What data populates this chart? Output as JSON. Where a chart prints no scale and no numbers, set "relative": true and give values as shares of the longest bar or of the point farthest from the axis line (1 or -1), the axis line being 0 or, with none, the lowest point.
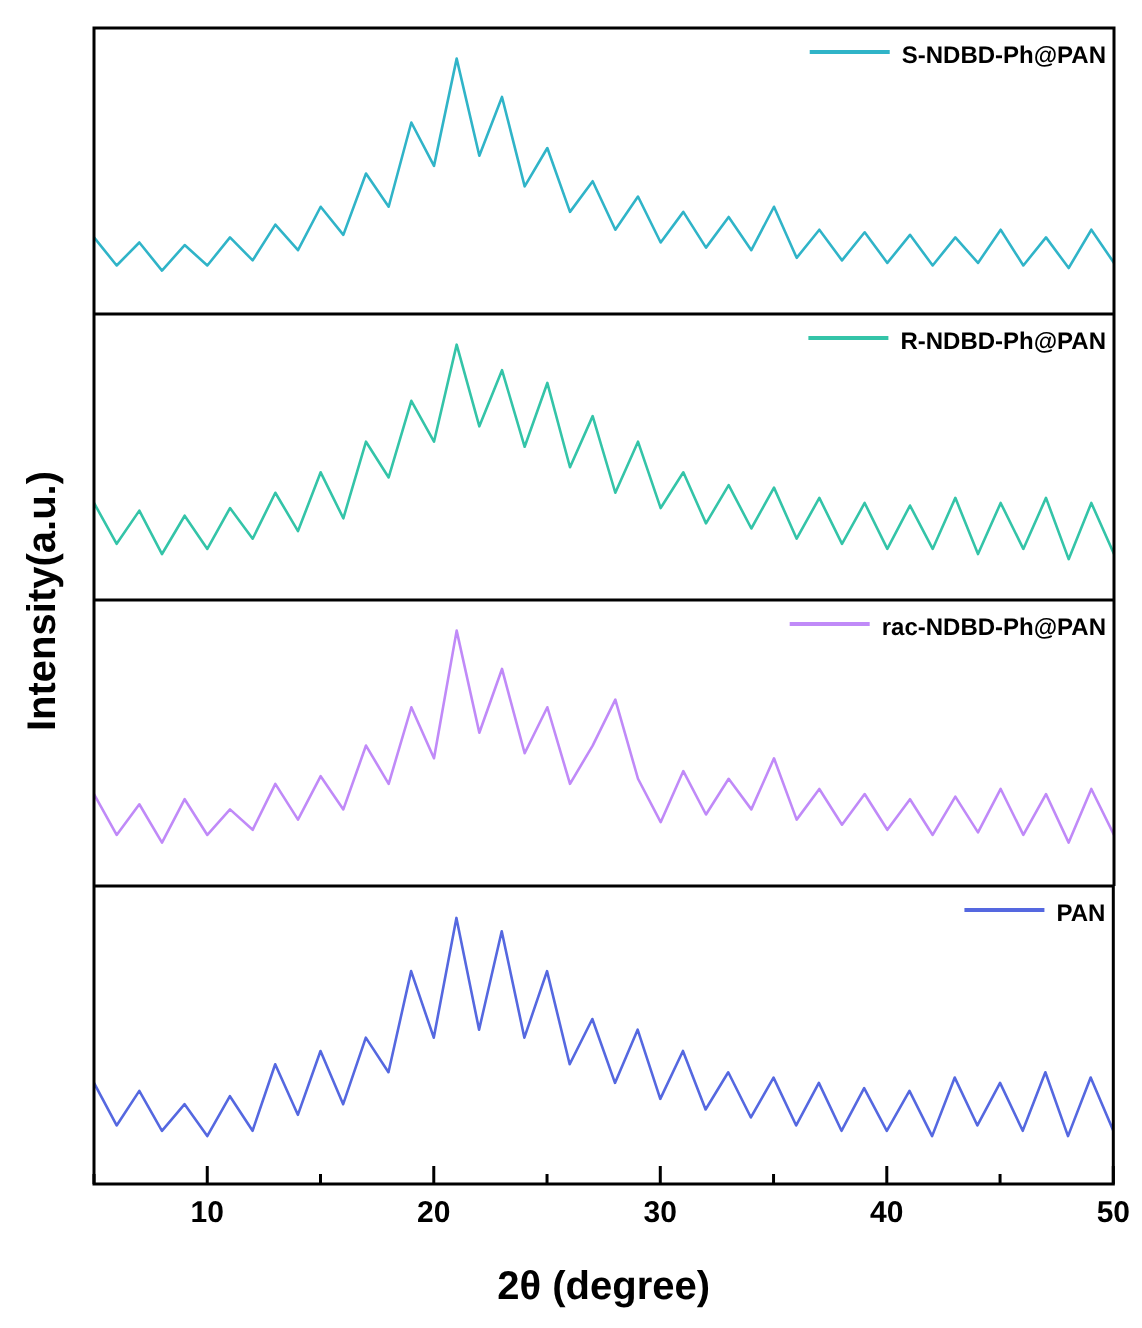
{
  "chart_data": [
    {
      "type": "line",
      "relative": true,
      "xlim": [
        5,
        50
      ],
      "tick_labels": false,
      "legend": "top right",
      "x": [
        5,
        6,
        7,
        8,
        9,
        10,
        11,
        12,
        13,
        14,
        15,
        16,
        17,
        18,
        19,
        20,
        21,
        22,
        23,
        24,
        25,
        26,
        27,
        28,
        29,
        30,
        31,
        32,
        33,
        34,
        35,
        36,
        37,
        38,
        39,
        40,
        41,
        42,
        43,
        44,
        45,
        46,
        47,
        48,
        49,
        50
      ],
      "series": [
        {
          "name": "S-NDBD-Ph@PAN",
          "color": "#30b4c8",
          "values": [
            0.3,
            0.19,
            0.28,
            0.17,
            0.27,
            0.19,
            0.3,
            0.21,
            0.35,
            0.25,
            0.42,
            0.31,
            0.55,
            0.42,
            0.75,
            0.58,
            1.0,
            0.62,
            0.85,
            0.5,
            0.65,
            0.4,
            0.52,
            0.33,
            0.46,
            0.28,
            0.4,
            0.26,
            0.38,
            0.25,
            0.42,
            0.22,
            0.33,
            0.21,
            0.32,
            0.2,
            0.31,
            0.19,
            0.3,
            0.2,
            0.33,
            0.19,
            0.3,
            0.18,
            0.33,
            0.2
          ]
        }
      ]
    },
    {
      "type": "line",
      "relative": true,
      "xlim": [
        5,
        50
      ],
      "tick_labels": false,
      "legend": "top right",
      "x": [
        5,
        6,
        7,
        8,
        9,
        10,
        11,
        12,
        13,
        14,
        15,
        16,
        17,
        18,
        19,
        20,
        21,
        22,
        23,
        24,
        25,
        26,
        27,
        28,
        29,
        30,
        31,
        32,
        33,
        34,
        35,
        36,
        37,
        38,
        39,
        40,
        41,
        42,
        43,
        44,
        45,
        46,
        47,
        48,
        49,
        50
      ],
      "series": [
        {
          "name": "R-NDBD-Ph@PAN",
          "color": "#34c4a8",
          "values": [
            0.38,
            0.22,
            0.35,
            0.18,
            0.33,
            0.2,
            0.36,
            0.24,
            0.42,
            0.27,
            0.5,
            0.32,
            0.62,
            0.48,
            0.78,
            0.62,
            1.0,
            0.68,
            0.9,
            0.6,
            0.85,
            0.52,
            0.72,
            0.42,
            0.62,
            0.36,
            0.5,
            0.3,
            0.45,
            0.28,
            0.44,
            0.24,
            0.4,
            0.22,
            0.38,
            0.2,
            0.37,
            0.2,
            0.4,
            0.18,
            0.38,
            0.2,
            0.4,
            0.16,
            0.38,
            0.18
          ]
        }
      ]
    },
    {
      "type": "line",
      "relative": true,
      "xlim": [
        5,
        50
      ],
      "tick_labels": false,
      "legend": "top right",
      "x": [
        5,
        6,
        7,
        8,
        9,
        10,
        11,
        12,
        13,
        14,
        15,
        16,
        17,
        18,
        19,
        20,
        21,
        22,
        23,
        24,
        25,
        26,
        27,
        28,
        29,
        30,
        31,
        32,
        33,
        34,
        35,
        36,
        37,
        38,
        39,
        40,
        41,
        42,
        43,
        44,
        45,
        46,
        47,
        48,
        49,
        50
      ],
      "series": [
        {
          "name": "rac-NDBD-Ph@PAN",
          "color": "#c08af8",
          "values": [
            0.36,
            0.2,
            0.32,
            0.17,
            0.34,
            0.2,
            0.3,
            0.22,
            0.4,
            0.26,
            0.43,
            0.3,
            0.55,
            0.4,
            0.7,
            0.5,
            1.0,
            0.6,
            0.85,
            0.52,
            0.7,
            0.4,
            0.55,
            0.73,
            0.42,
            0.25,
            0.45,
            0.28,
            0.42,
            0.3,
            0.5,
            0.26,
            0.38,
            0.24,
            0.36,
            0.22,
            0.34,
            0.2,
            0.35,
            0.21,
            0.38,
            0.2,
            0.36,
            0.17,
            0.38,
            0.2
          ]
        }
      ]
    },
    {
      "type": "line",
      "relative": true,
      "xlim": [
        5,
        50
      ],
      "tick_labels": "x",
      "legend": "top right",
      "xlabel": "2θ (degree)",
      "ylabel": "Intensity(a.u.)",
      "xticks": [
        {
          "value": 5,
          "label": null
        },
        10,
        {
          "value": 15,
          "label": null
        },
        20,
        {
          "value": 25,
          "label": null
        },
        30,
        {
          "value": 35,
          "label": null
        },
        40,
        {
          "value": 45,
          "label": null
        },
        50
      ],
      "x": [
        5,
        6,
        7,
        8,
        9,
        10,
        11,
        12,
        13,
        14,
        15,
        16,
        17,
        18,
        19,
        20,
        21,
        22,
        23,
        24,
        25,
        26,
        27,
        28,
        29,
        30,
        31,
        32,
        33,
        34,
        35,
        36,
        37,
        38,
        39,
        40,
        41,
        42,
        43,
        44,
        45,
        46,
        47,
        48,
        49,
        50
      ],
      "series": [
        {
          "name": "PAN",
          "color": "#5568e0",
          "values": [
            0.38,
            0.22,
            0.35,
            0.2,
            0.3,
            0.18,
            0.33,
            0.2,
            0.45,
            0.26,
            0.5,
            0.3,
            0.55,
            0.42,
            0.8,
            0.55,
            1.0,
            0.58,
            0.95,
            0.55,
            0.8,
            0.45,
            0.62,
            0.38,
            0.58,
            0.32,
            0.5,
            0.28,
            0.42,
            0.25,
            0.4,
            0.22,
            0.38,
            0.2,
            0.36,
            0.2,
            0.35,
            0.18,
            0.4,
            0.22,
            0.38,
            0.2,
            0.42,
            0.18,
            0.4,
            0.2
          ]
        }
      ]
    }
  ]
}
